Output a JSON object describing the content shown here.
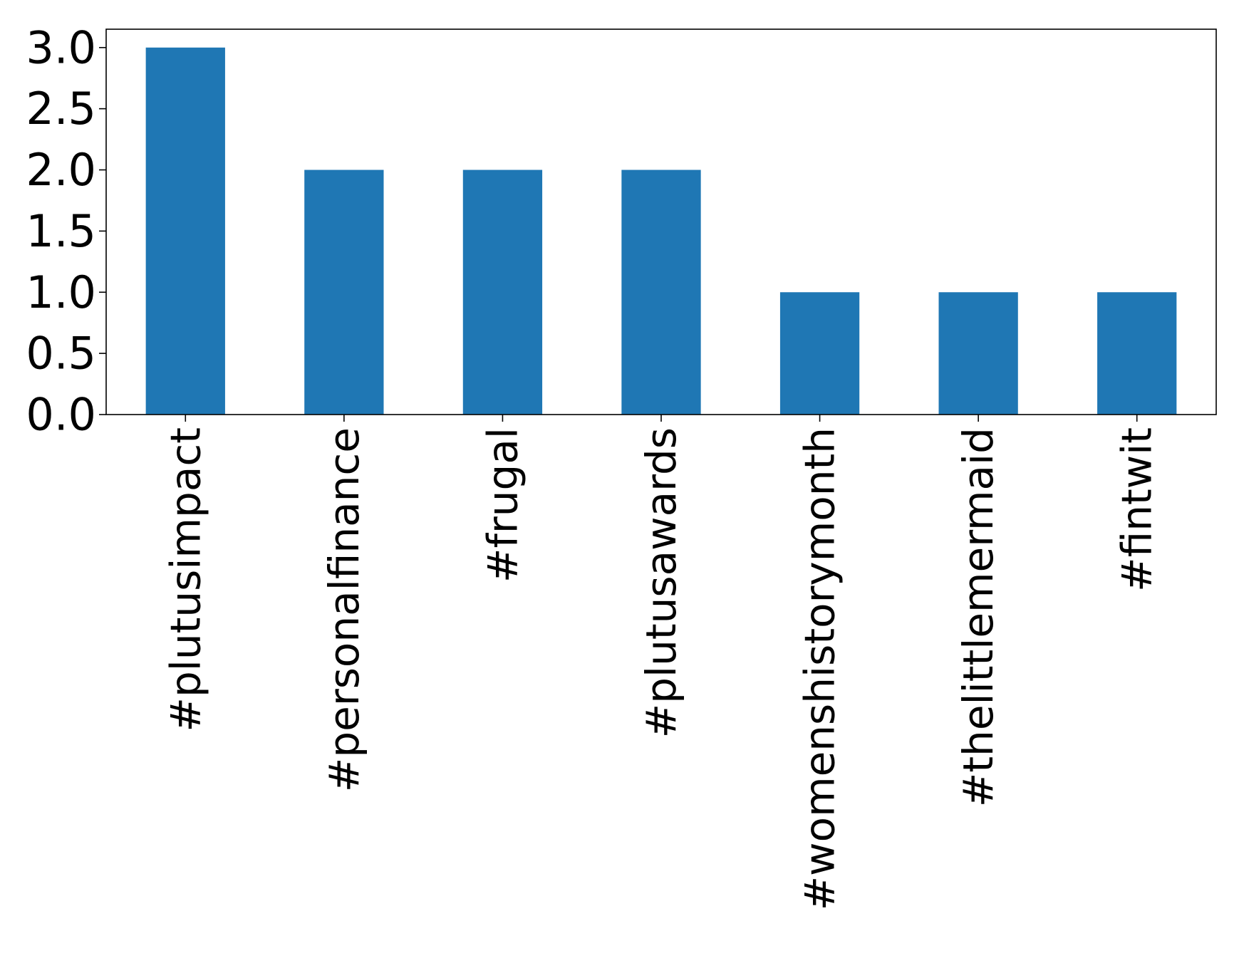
{
  "chart_data": {
    "type": "bar",
    "categories": [
      "#plutusimpact",
      "#personalfinance",
      "#frugal",
      "#plutusawards",
      "#womenshistorymonth",
      "#thelittlemermaid",
      "#fintwit"
    ],
    "values": [
      3,
      2,
      2,
      2,
      1,
      1,
      1
    ],
    "title": "",
    "xlabel": "",
    "ylabel": "",
    "ylim": [
      0,
      3.15
    ],
    "yticks": [
      "0.0",
      "0.5",
      "1.0",
      "1.5",
      "2.0",
      "2.5",
      "3.0"
    ],
    "grid": false,
    "legend": "none",
    "bar_color": "#1f77b4"
  }
}
